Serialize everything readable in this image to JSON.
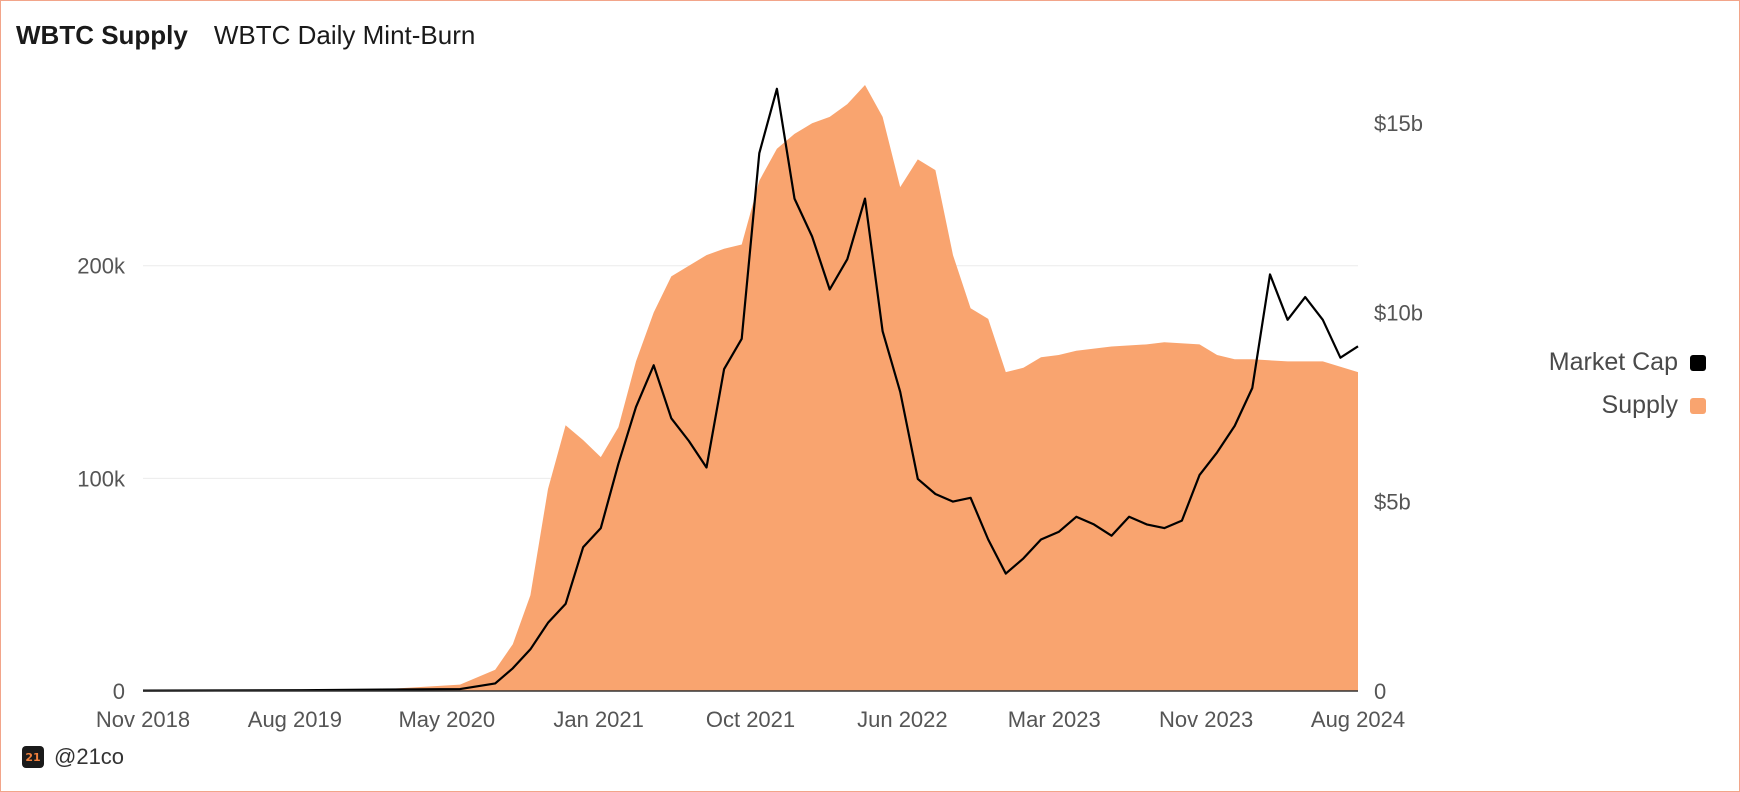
{
  "tabs": [
    {
      "label": "WBTC Supply",
      "active": true
    },
    {
      "label": "WBTC Daily Mint-Burn",
      "active": false
    }
  ],
  "footer": {
    "logo_text": "21",
    "handle": "@21co"
  },
  "colors": {
    "supply": "#f9a46f",
    "market_cap": "#000000",
    "grid": "#ececec",
    "border": "#f2a58a"
  },
  "chart_data": {
    "type": "area",
    "x_range": [
      "2018-11",
      "2024-08"
    ],
    "x_ticks": [
      "Nov 2018",
      "Aug 2019",
      "May 2020",
      "Jan 2021",
      "Oct 2021",
      "Jun 2022",
      "Mar 2023",
      "Nov 2023",
      "Aug 2024"
    ],
    "y_left": {
      "ticks": [
        "0",
        "100k",
        "200k"
      ],
      "tick_values": [
        0,
        100000,
        200000
      ],
      "range": [
        0,
        285000
      ]
    },
    "y_right": {
      "ticks": [
        "0",
        "$5b",
        "$10b",
        "$15b"
      ],
      "tick_values": [
        0,
        5,
        10,
        15
      ],
      "range": [
        0,
        16
      ],
      "unit": "billion USD"
    },
    "legend": {
      "position": "right",
      "items": [
        {
          "name": "Market Cap",
          "color": "#000000"
        },
        {
          "name": "Supply",
          "color": "#f9a46f"
        }
      ]
    },
    "series": [
      {
        "name": "Supply",
        "axis": "left",
        "type": "area",
        "x": [
          "2018-11",
          "2019-03",
          "2019-08",
          "2020-01",
          "2020-05",
          "2020-07",
          "2020-08",
          "2020-09",
          "2020-10",
          "2020-11",
          "2020-12",
          "2021-01",
          "2021-02",
          "2021-03",
          "2021-04",
          "2021-05",
          "2021-06",
          "2021-07",
          "2021-08",
          "2021-09",
          "2021-10",
          "2021-11",
          "2021-12",
          "2022-01",
          "2022-02",
          "2022-03",
          "2022-04",
          "2022-05",
          "2022-06",
          "2022-07",
          "2022-08",
          "2022-09",
          "2022-10",
          "2022-11",
          "2022-12",
          "2023-01",
          "2023-02",
          "2023-03",
          "2023-04",
          "2023-06",
          "2023-08",
          "2023-09",
          "2023-11",
          "2023-12",
          "2024-01",
          "2024-02",
          "2024-04",
          "2024-06",
          "2024-08"
        ],
        "values": [
          0,
          200,
          500,
          1000,
          3000,
          10000,
          22000,
          45000,
          95000,
          125000,
          118000,
          110000,
          124000,
          155000,
          178000,
          195000,
          200000,
          205000,
          208000,
          210000,
          240000,
          255000,
          262000,
          267000,
          270000,
          276000,
          285000,
          270000,
          237000,
          250000,
          245000,
          205000,
          180000,
          175000,
          150000,
          152000,
          157000,
          158000,
          160000,
          162000,
          163000,
          164000,
          163000,
          158000,
          156000,
          156000,
          155000,
          155000,
          150000
        ]
      },
      {
        "name": "Market Cap",
        "axis": "right",
        "type": "line",
        "x": [
          "2018-11",
          "2019-08",
          "2020-05",
          "2020-07",
          "2020-08",
          "2020-09",
          "2020-10",
          "2020-11",
          "2020-12",
          "2021-01",
          "2021-02",
          "2021-03",
          "2021-04",
          "2021-05",
          "2021-06",
          "2021-07",
          "2021-08",
          "2021-09",
          "2021-10",
          "2021-11",
          "2021-12",
          "2022-01",
          "2022-02",
          "2022-03",
          "2022-04",
          "2022-05",
          "2022-06",
          "2022-07",
          "2022-08",
          "2022-09",
          "2022-10",
          "2022-11",
          "2022-12",
          "2023-01",
          "2023-02",
          "2023-03",
          "2023-04",
          "2023-05",
          "2023-06",
          "2023-07",
          "2023-08",
          "2023-09",
          "2023-10",
          "2023-11",
          "2023-12",
          "2024-01",
          "2024-02",
          "2024-03",
          "2024-04",
          "2024-05",
          "2024-06",
          "2024-07",
          "2024-08"
        ],
        "values": [
          0.01,
          0.02,
          0.05,
          0.2,
          0.6,
          1.1,
          1.8,
          2.3,
          3.8,
          4.3,
          6.0,
          7.5,
          8.6,
          7.2,
          6.6,
          5.9,
          8.5,
          9.3,
          14.2,
          15.9,
          13.0,
          12.0,
          10.6,
          11.4,
          13.0,
          9.5,
          7.9,
          5.6,
          5.2,
          5.0,
          5.1,
          4.0,
          3.1,
          3.5,
          4.0,
          4.2,
          4.6,
          4.4,
          4.1,
          4.6,
          4.4,
          4.3,
          4.5,
          5.7,
          6.3,
          7.0,
          8.0,
          11.0,
          9.8,
          10.4,
          9.8,
          8.8,
          9.1
        ]
      }
    ]
  }
}
